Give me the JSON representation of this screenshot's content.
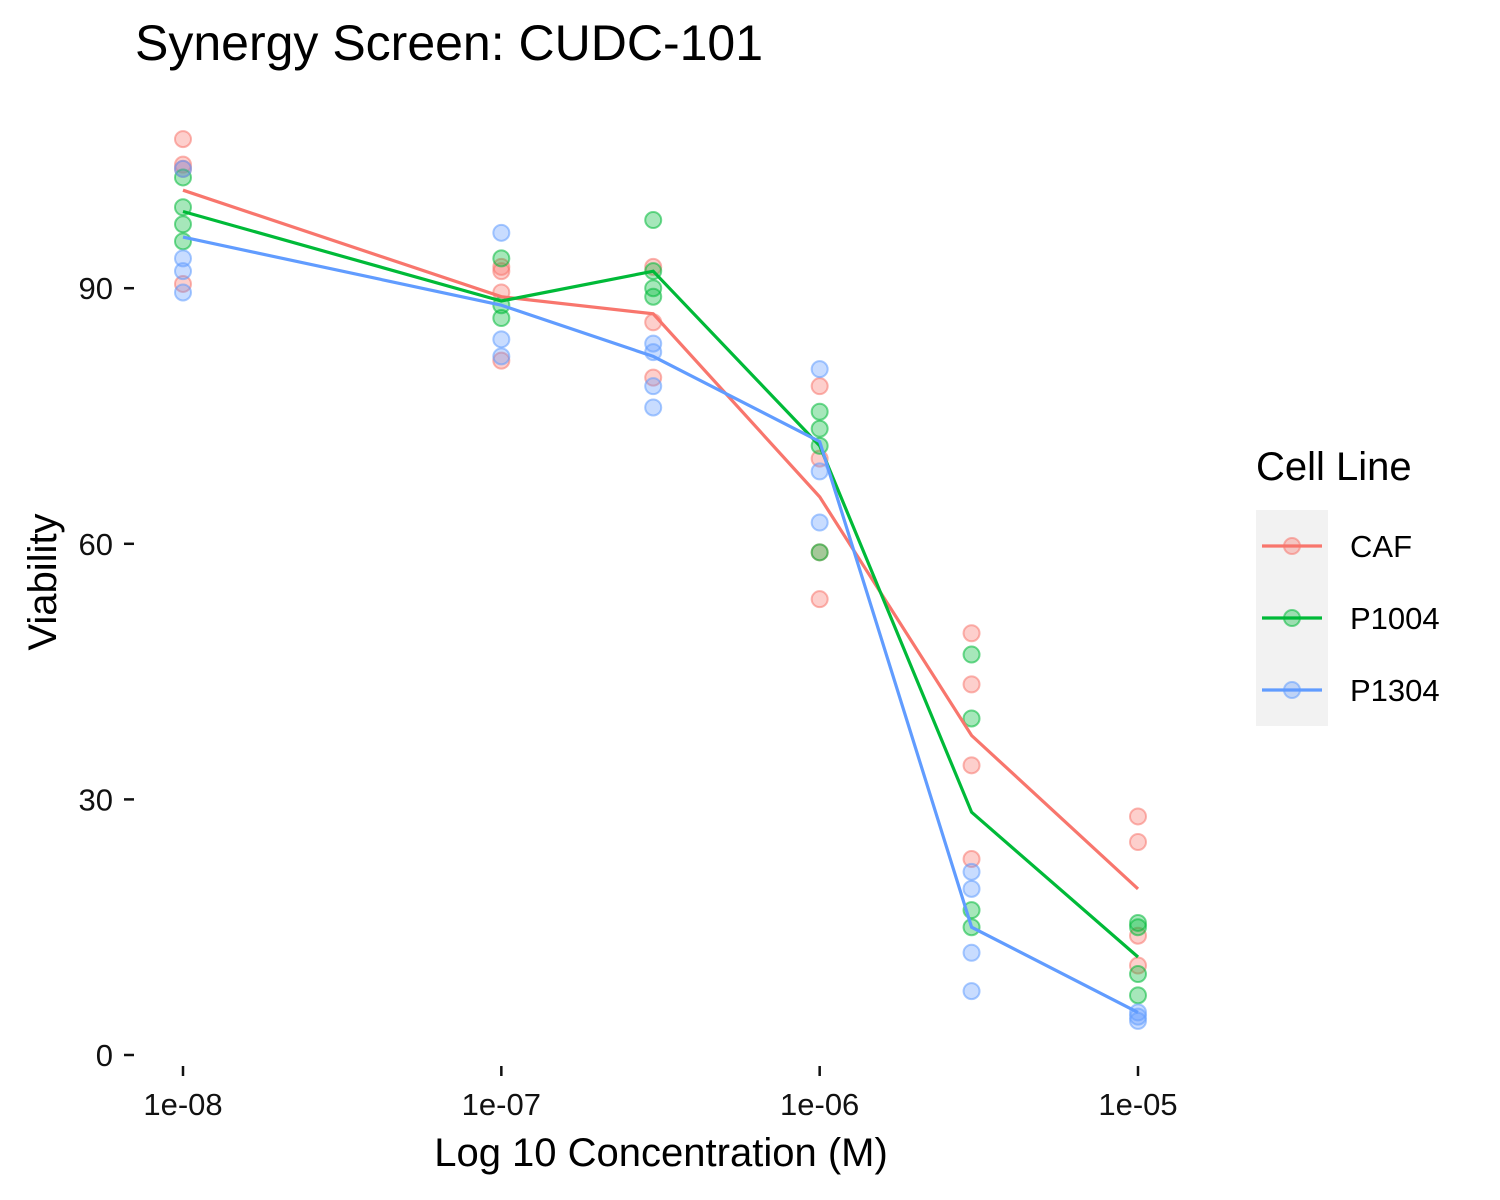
{
  "chart_data": {
    "type": "line",
    "title": "Synergy Screen: CUDC-101",
    "xlabel": "Log 10 Concentration (M)",
    "ylabel": "Viability",
    "x_scale": "log10",
    "x_ticks": [
      "1e-08",
      "1e-07",
      "1e-06",
      "1e-05"
    ],
    "x_tick_values": [
      1e-08,
      1e-07,
      1e-06,
      1e-05
    ],
    "y_ticks": [
      0,
      30,
      60,
      90
    ],
    "ylim": [
      0,
      108
    ],
    "grid": false,
    "legend": {
      "title": "Cell Line",
      "position": "right"
    },
    "x": [
      1e-08,
      1e-07,
      3e-07,
      1e-06,
      3e-06,
      1e-05
    ],
    "series": [
      {
        "name": "CAF",
        "color": "#F8766D",
        "mean": [
          101.5,
          89.0,
          87.0,
          65.5,
          37.5,
          19.5
        ],
        "points": [
          [
            1e-08,
            107.5
          ],
          [
            1e-08,
            104.5
          ],
          [
            1e-08,
            104.0
          ],
          [
            1e-08,
            90.5
          ],
          [
            1e-07,
            92.5
          ],
          [
            1e-07,
            92.0
          ],
          [
            1e-07,
            89.5
          ],
          [
            1e-07,
            81.5
          ],
          [
            3e-07,
            92.5
          ],
          [
            3e-07,
            86.0
          ],
          [
            3e-07,
            79.5
          ],
          [
            1e-06,
            78.5
          ],
          [
            1e-06,
            70.0
          ],
          [
            1e-06,
            59.0
          ],
          [
            1e-06,
            53.5
          ],
          [
            3e-06,
            49.5
          ],
          [
            3e-06,
            43.5
          ],
          [
            3e-06,
            34.0
          ],
          [
            3e-06,
            23.0
          ],
          [
            1e-05,
            28.0
          ],
          [
            1e-05,
            25.0
          ],
          [
            1e-05,
            14.0
          ],
          [
            1e-05,
            10.5
          ]
        ]
      },
      {
        "name": "P1004",
        "color": "#00BA38",
        "mean": [
          99.0,
          88.5,
          92.0,
          71.5,
          28.5,
          11.5
        ],
        "points": [
          [
            1e-08,
            103.0
          ],
          [
            1e-08,
            99.5
          ],
          [
            1e-08,
            97.5
          ],
          [
            1e-08,
            95.5
          ],
          [
            1e-07,
            93.5
          ],
          [
            1e-07,
            88.0
          ],
          [
            1e-07,
            86.5
          ],
          [
            3e-07,
            98.0
          ],
          [
            3e-07,
            92.0
          ],
          [
            3e-07,
            90.0
          ],
          [
            3e-07,
            89.0
          ],
          [
            1e-06,
            75.5
          ],
          [
            1e-06,
            73.5
          ],
          [
            1e-06,
            71.5
          ],
          [
            1e-06,
            59.0
          ],
          [
            3e-06,
            47.0
          ],
          [
            3e-06,
            39.5
          ],
          [
            3e-06,
            17.0
          ],
          [
            3e-06,
            15.0
          ],
          [
            1e-05,
            15.5
          ],
          [
            1e-05,
            15.0
          ],
          [
            1e-05,
            9.5
          ],
          [
            1e-05,
            7.0
          ]
        ]
      },
      {
        "name": "P1304",
        "color": "#619CFF",
        "mean": [
          96.0,
          88.0,
          82.0,
          72.0,
          15.0,
          5.0
        ],
        "points": [
          [
            1e-08,
            104.0
          ],
          [
            1e-08,
            93.5
          ],
          [
            1e-08,
            92.0
          ],
          [
            1e-08,
            89.5
          ],
          [
            1e-07,
            96.5
          ],
          [
            1e-07,
            84.0
          ],
          [
            1e-07,
            82.0
          ],
          [
            3e-07,
            83.5
          ],
          [
            3e-07,
            82.5
          ],
          [
            3e-07,
            78.5
          ],
          [
            3e-07,
            76.0
          ],
          [
            1e-06,
            80.5
          ],
          [
            1e-06,
            68.5
          ],
          [
            1e-06,
            62.5
          ],
          [
            3e-06,
            21.5
          ],
          [
            3e-06,
            19.5
          ],
          [
            3e-06,
            12.0
          ],
          [
            3e-06,
            7.5
          ],
          [
            1e-05,
            5.0
          ],
          [
            1e-05,
            4.0
          ],
          [
            1e-05,
            4.5
          ]
        ]
      }
    ]
  }
}
